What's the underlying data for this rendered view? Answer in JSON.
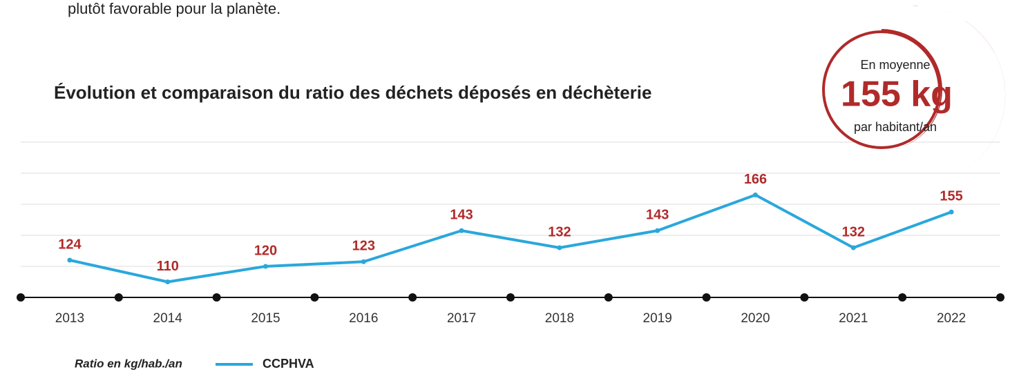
{
  "intro": "plutôt favorable pour la planète.",
  "chart_data": {
    "type": "line",
    "title": "Évolution et comparaison du ratio des déchets déposés en déchèterie",
    "categories": [
      "2013",
      "2014",
      "2015",
      "2016",
      "2017",
      "2018",
      "2019",
      "2020",
      "2021",
      "2022"
    ],
    "series": [
      {
        "name": "CCPHVA",
        "color": "#2aa7dc",
        "values": [
          124,
          110,
          120,
          123,
          143,
          132,
          143,
          166,
          132,
          155
        ]
      }
    ],
    "label_color": "#b02a2a",
    "ylim": [
      100,
      200
    ],
    "yticks": [
      120,
      140,
      160,
      180,
      200
    ],
    "grid": true,
    "note": "Ratio en kg/hab./an"
  },
  "badge": {
    "top": "En moyenne",
    "value": "155 kg",
    "bottom": "par habitant/an"
  }
}
